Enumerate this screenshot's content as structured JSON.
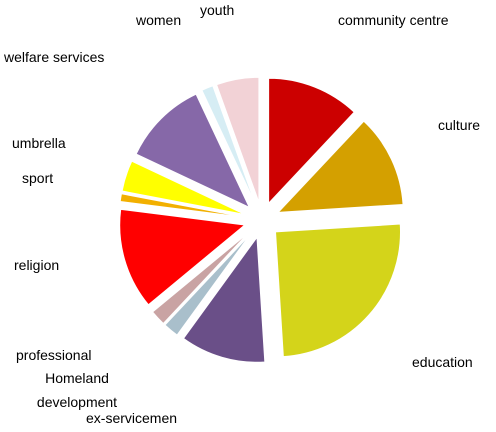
{
  "chart_data": {
    "type": "pie",
    "categories": [
      "community centre",
      "culture",
      "education",
      "ex-servicemen",
      "Homeland development",
      "professional",
      "religion",
      "sport",
      "umbrella",
      "welfare services",
      "women",
      "youth"
    ],
    "values": [
      12,
      12,
      25,
      11,
      2,
      2,
      13,
      1,
      4,
      11,
      1.5,
      5.5
    ],
    "colors": [
      "#cc0000",
      "#d4a000",
      "#d4d41a",
      "#6a4f88",
      "#a9bfcb",
      "#c9a3a3",
      "#ff0000",
      "#f2b000",
      "#ffff00",
      "#8668a8",
      "#d6edf4",
      "#f2d2d6"
    ],
    "exploded": true
  }
}
